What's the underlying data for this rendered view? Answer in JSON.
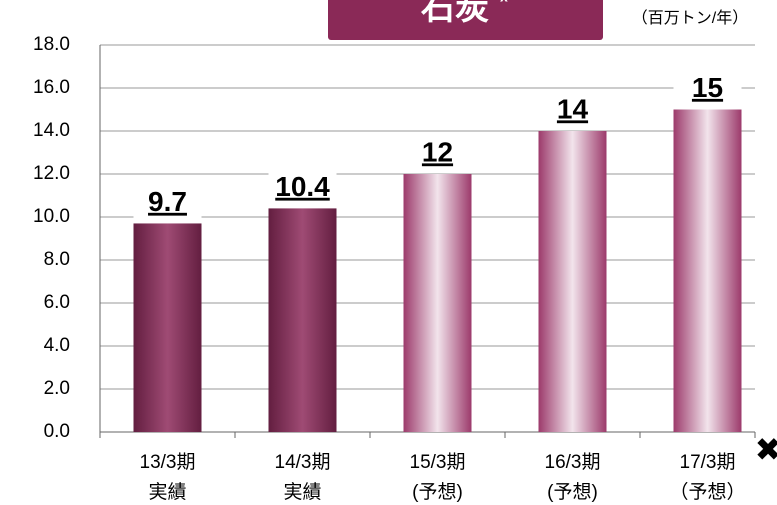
{
  "chart_data": {
    "type": "bar",
    "title": "石炭",
    "title_note": "x",
    "unit_label": "（百万トン/年）",
    "categories": [
      [
        "13/3期",
        "実績"
      ],
      [
        "14/3期",
        "実績"
      ],
      [
        "15/3期",
        "(予想)"
      ],
      [
        "16/3期",
        "(予想)"
      ],
      [
        "17/3期",
        "（予想）"
      ]
    ],
    "values": [
      9.7,
      10.4,
      12,
      14,
      15
    ],
    "colors": [
      "#8e2b5c",
      "#8e2b5c",
      "#f2e4ec",
      "#f2e4ec",
      "#f2e4ec"
    ],
    "ylim": [
      0,
      18
    ],
    "yticks": [
      {
        "value": 0,
        "label": "0.0"
      },
      {
        "value": 2,
        "label": "2.0"
      },
      {
        "value": 4,
        "label": "4.0"
      },
      {
        "value": 6,
        "label": "6.0"
      },
      {
        "value": 8,
        "label": "8.0"
      },
      {
        "value": 10,
        "label": "10.0"
      },
      {
        "value": 12,
        "label": "12.0"
      },
      {
        "value": 14,
        "label": "14.0"
      },
      {
        "value": 16,
        "label": "16.0"
      },
      {
        "value": 18,
        "label": "18.0"
      }
    ],
    "grid": true
  }
}
